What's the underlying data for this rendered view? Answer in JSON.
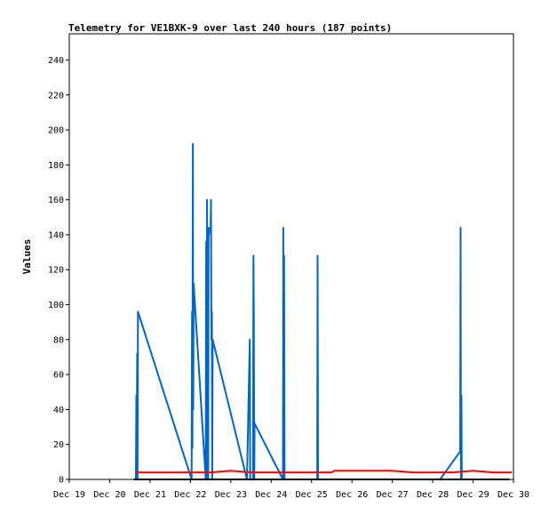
{
  "chart_data": {
    "type": "line",
    "title": "Telemetry for VE1BXK-9 over last 240 hours (187 points)",
    "xlabel": "",
    "ylabel": "Values",
    "ylim": [
      0,
      255
    ],
    "yticks": [
      0,
      20,
      40,
      60,
      80,
      100,
      120,
      140,
      160,
      180,
      200,
      220,
      240
    ],
    "xlim": [
      0,
      11
    ],
    "xticks": [
      {
        "x": 0,
        "label": "Dec 19"
      },
      {
        "x": 1,
        "label": "Dec 20"
      },
      {
        "x": 2,
        "label": "Dec 21"
      },
      {
        "x": 3,
        "label": "Dec 22"
      },
      {
        "x": 4,
        "label": "Dec 23"
      },
      {
        "x": 5,
        "label": "Dec 24"
      },
      {
        "x": 6,
        "label": "Dec 25"
      },
      {
        "x": 7,
        "label": "Dec 26"
      },
      {
        "x": 8,
        "label": "Dec 27"
      },
      {
        "x": 9,
        "label": "Dec 28"
      },
      {
        "x": 10,
        "label": "Dec 29"
      },
      {
        "x": 11,
        "label": "Dec 30"
      }
    ],
    "grid": false,
    "legend": "none",
    "series": [
      {
        "color": "#0066cc",
        "x": [
          1.65,
          1.66,
          1.67,
          1.68,
          1.69,
          1.7,
          3.03,
          3.04,
          3.05,
          3.06,
          3.07,
          3.08,
          3.38,
          3.39,
          3.4,
          3.41,
          3.42,
          3.43,
          3.44,
          3.45,
          3.46,
          3.47,
          3.48,
          3.49,
          3.5,
          3.51,
          3.52,
          3.53,
          3.54,
          3.55,
          4.4,
          4.47,
          4.48,
          4.55,
          4.56,
          4.57,
          4.58,
          4.59,
          5.29,
          5.3,
          5.31,
          5.32,
          5.33,
          5.34,
          5.49,
          5.5,
          5.51,
          6.14,
          6.15,
          6.16,
          6.94,
          6.95,
          7.14,
          7.15,
          9.18,
          9.68,
          9.69,
          9.7,
          9.71,
          9.72,
          9.73,
          9.74,
          9.75,
          9.76
        ],
        "y": [
          0,
          48,
          0,
          72,
          0,
          96,
          0,
          96,
          18,
          192,
          40,
          112,
          0,
          136,
          16,
          160,
          0,
          144,
          0,
          144,
          140,
          142,
          143,
          144,
          143,
          160,
          80,
          96,
          0,
          80,
          0,
          80,
          0,
          0,
          128,
          96,
          0,
          32,
          0,
          144,
          0,
          128,
          0,
          0,
          0,
          0,
          0,
          0,
          128,
          0,
          0,
          0,
          0,
          0,
          0,
          16,
          144,
          0,
          48,
          0,
          0,
          0,
          0,
          0
        ]
      },
      {
        "color": "#ff0000",
        "x": [
          1.65,
          2.0,
          2.5,
          3.0,
          3.5,
          4.0,
          4.5,
          5.0,
          5.5,
          6.0,
          6.5,
          6.56,
          7.0,
          7.5,
          8.0,
          8.5,
          9.0,
          9.5,
          10.0,
          10.5,
          10.96
        ],
        "y": [
          4,
          4,
          4,
          4,
          4,
          5,
          4,
          4,
          4,
          4,
          4,
          5,
          5,
          5,
          5,
          4,
          4,
          4,
          5,
          4,
          4
        ]
      },
      {
        "color": "#000000",
        "x": [
          1.6,
          10.9
        ],
        "y": [
          0,
          0
        ]
      }
    ]
  }
}
